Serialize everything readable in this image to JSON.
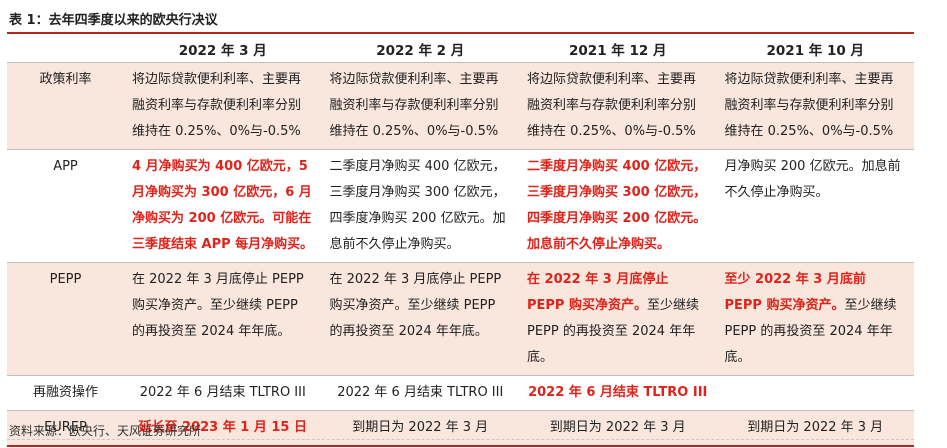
{
  "title": "表 1：去年四季度以来的欧央行决议",
  "headers": [
    "",
    "2022 年 3 月",
    "2022 年 2 月",
    "2021 年 12 月",
    "2021 年 10 月"
  ],
  "rows": [
    {
      "label": "政策利率",
      "shaded": true,
      "cells": [
        [
          {
            "t": "将边际贷款便利利率、主要再融资利率与存款便利利率分别维持在 0.25%、0%与-0.5%",
            "r": false
          }
        ],
        [
          {
            "t": "将边际贷款便利利率、主要再融资利率与存款便利利率分别维持在 0.25%、0%与-0.5%",
            "r": false
          }
        ],
        [
          {
            "t": "将边际贷款便利利率、主要再融资利率与存款便利利率分别维持在 0.25%、0%与-0.5%",
            "r": false
          }
        ],
        [
          {
            "t": "将边际贷款便利利率、主要再融资利率与存款便利利率分别维持在 0.25%、0%与-0.5%",
            "r": false
          }
        ]
      ]
    },
    {
      "label": "APP",
      "shaded": false,
      "cells": [
        [
          {
            "t": "4 月净购买为 400 亿欧元，5 月净购买为 300 亿欧元，6 月净购买为 200 亿欧元。可能在三季度结束 APP 每月净购买。",
            "r": true
          }
        ],
        [
          {
            "t": "二季度月净购买 400 亿欧元，三季度月净购买 300 亿欧元，四季度净购买 200 亿欧元。加息前不久停止净购买。",
            "r": false
          }
        ],
        [
          {
            "t": "二季度月净购买 400 亿欧元，三季度月净购买 300 亿欧元，四季度月净购买 200 亿欧元。加息前不久停止净购买。",
            "r": true
          }
        ],
        [
          {
            "t": "月净购买 200 亿欧元。加息前不久停止净购买。",
            "r": false
          }
        ]
      ]
    },
    {
      "label": "PEPP",
      "shaded": true,
      "cells": [
        [
          {
            "t": "在 2022 年 3 月底停止 PEPP 购买净资产。至少继续 PEPP 的再投资至 2024 年年底。",
            "r": false
          }
        ],
        [
          {
            "t": "在 2022 年 3 月底停止 PEPP 购买净资产。至少继续 PEPP 的再投资至 2024 年年底。",
            "r": false
          }
        ],
        [
          {
            "t": "在 2022 年 3 月底停止 PEPP 购买净资产。",
            "r": true
          },
          {
            "t": "至少继续 PEPP 的再投资至 2024 年年底。",
            "r": false
          }
        ],
        [
          {
            "t": "至少 2022 年 3 月底前 PEPP 购买净资产。",
            "r": true
          },
          {
            "t": "至少继续 PEPP 的再投资至 2024 年年底。",
            "r": false
          }
        ]
      ]
    },
    {
      "label": "再融资操作",
      "shaded": false,
      "center": true,
      "cells": [
        [
          {
            "t": "2022 年 6 月结束 TLTRO III",
            "r": false
          }
        ],
        [
          {
            "t": "2022 年 6 月结束 TLTRO III",
            "r": false
          }
        ],
        [
          {
            "t": "2022 年 6 月结束 TLTRO III",
            "r": true
          }
        ],
        []
      ]
    },
    {
      "label": "EUREP",
      "shaded": true,
      "center": true,
      "cells": [
        [
          {
            "t": "延长至 2023 年 1 月 15 日",
            "r": true
          }
        ],
        [
          {
            "t": "到期日为 2022 年 3 月",
            "r": false
          }
        ],
        [
          {
            "t": "到期日为 2022 年 3 月",
            "r": false
          }
        ],
        [
          {
            "t": "到期日为 2022 年 3 月",
            "r": false
          }
        ]
      ]
    }
  ],
  "source": "资料来源：欧央行、天风证券研究所"
}
